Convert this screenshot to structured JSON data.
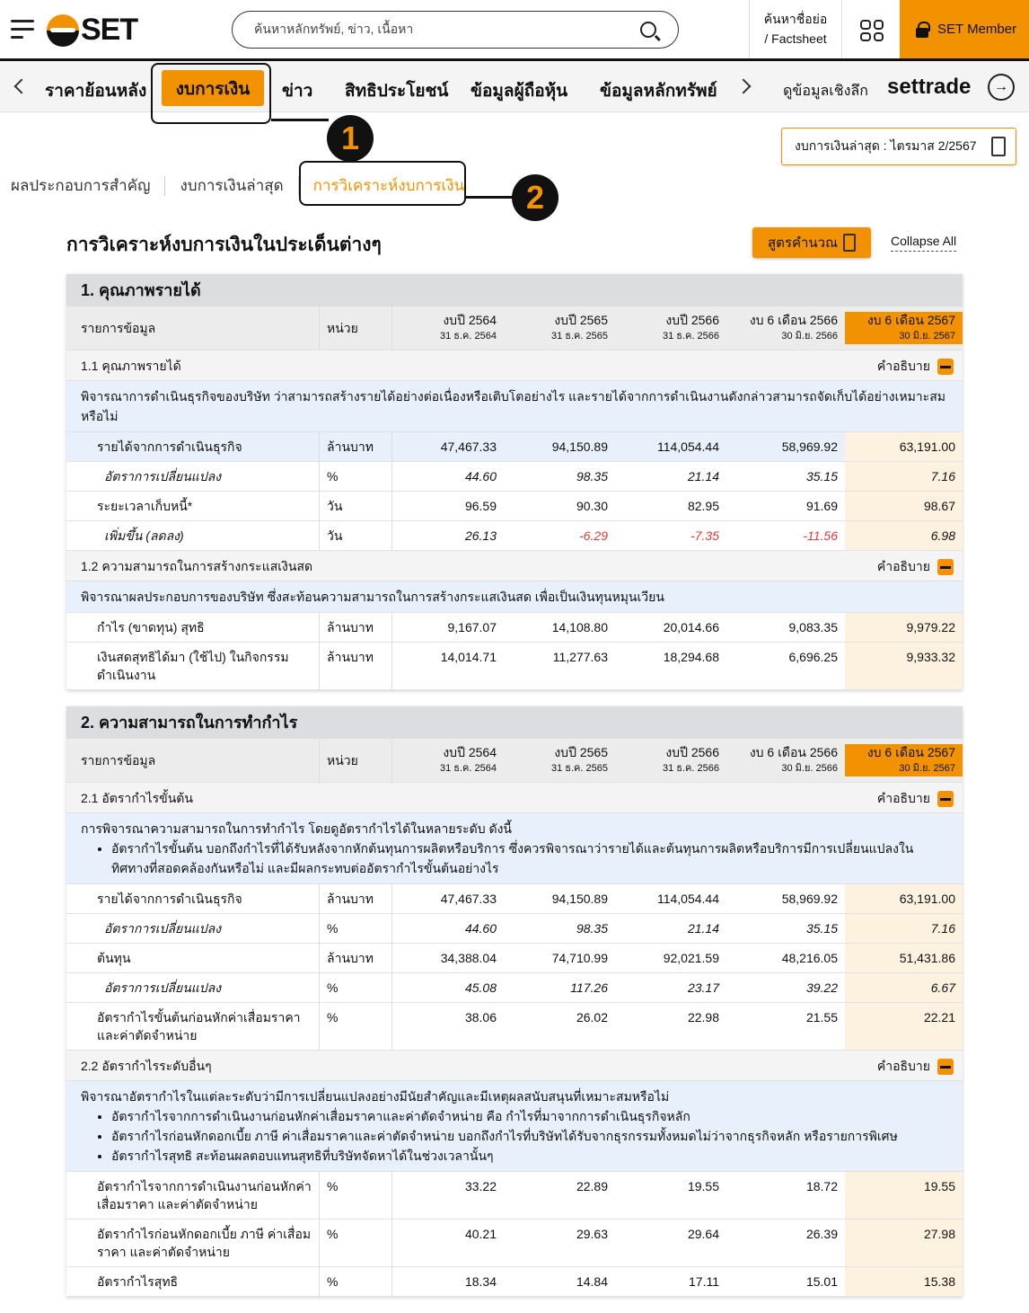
{
  "header": {
    "logo": "SET",
    "search_placeholder": "ค้นหาหลักทรัพย์, ข่าว, เนื้อหา",
    "factsheet_line1": "ค้นหาชื่อย่อ",
    "factsheet_line2": "/ Factsheet",
    "member": "SET Member",
    "accent": "#f39200"
  },
  "nav": {
    "items": [
      "ราคาย้อนหลัง",
      "งบการเงิน",
      "ข่าว",
      "สิทธิประโยชน์",
      "ข้อมูลผู้ถือหุ้น",
      "ข้อมูลหลักทรัพย์"
    ],
    "active": "งบการเงิน",
    "deep": "ดูข้อมูลเชิงลึก",
    "settrade": "settrade"
  },
  "annotations": [
    "1",
    "2"
  ],
  "latest": "งบการเงินล่าสุด : ไตรมาส 2/2567",
  "subtabs": [
    "ผลประกอบการสำคัญ",
    "งบการเงินล่าสุด",
    "การวิเคราะห์งบการเงิน"
  ],
  "page_title": "การวิเคราะห์งบการเงินในประเด็นต่างๆ",
  "formula_button": "สูตรคำนวณ",
  "collapse_all": "Collapse All",
  "columns": {
    "item": "รายการข้อมูล",
    "unit": "หน่วย",
    "periods": [
      {
        "t": "งบปี 2564",
        "d": "31 ธ.ค. 2564"
      },
      {
        "t": "งบปี 2565",
        "d": "31 ธ.ค. 2565"
      },
      {
        "t": "งบปี 2566",
        "d": "31 ธ.ค. 2566"
      },
      {
        "t": "งบ 6 เดือน 2566",
        "d": "30 มิ.ย. 2566"
      },
      {
        "t": "งบ 6 เดือน 2567",
        "d": "30 มิ.ย. 2567"
      }
    ]
  },
  "explain_label": "คำอธิบาย",
  "sections": [
    {
      "title": "1. คุณภาพรายได้",
      "subs": [
        {
          "title": "1.1 คุณภาพรายได้",
          "desc": "พิจารณาการดำเนินธุรกิจของบริษัท ว่าสามารถสร้างรายได้อย่างต่อเนื่องหรือเติบโตอย่างไร และรายได้จากการดำเนินงานดังกล่าวสามารถจัดเก็บได้อย่างเหมาะสมหรือไม่",
          "bullets": [],
          "rows": [
            {
              "label": "รายได้จากการดำเนินธุรกิจ",
              "unit": "ล้านบาท",
              "values": [
                "47,467.33",
                "94,150.89",
                "114,054.44",
                "58,969.92",
                "63,191.00"
              ],
              "highlight": true
            },
            {
              "label": "อัตราการเปลี่ยนแปลง",
              "unit": "%",
              "values": [
                "44.60",
                "98.35",
                "21.14",
                "35.15",
                "7.16"
              ],
              "italic": true
            },
            {
              "label": "ระยะเวลาเก็บหนี้*",
              "unit": "วัน",
              "values": [
                "96.59",
                "90.30",
                "82.95",
                "91.69",
                "98.67"
              ]
            },
            {
              "label": "เพิ่มขึ้น (ลดลง)",
              "unit": "วัน",
              "values": [
                "26.13",
                "-6.29",
                "-7.35",
                "-11.56",
                "6.98"
              ],
              "italic": true
            }
          ]
        },
        {
          "title": "1.2 ความสามารถในการสร้างกระแสเงินสด",
          "desc": "พิจารณาผลประกอบการของบริษัท ซึ่งสะท้อนความสามารถในการสร้างกระแสเงินสด เพื่อเป็นเงินทุนหมุนเวียน",
          "bullets": [],
          "rows": [
            {
              "label": "กำไร (ขาดทุน) สุทธิ",
              "unit": "ล้านบาท",
              "values": [
                "9,167.07",
                "14,108.80",
                "20,014.66",
                "9,083.35",
                "9,979.22"
              ]
            },
            {
              "label": "เงินสดสุทธิได้มา (ใช้ไป) ในกิจกรรมดำเนินงาน",
              "unit": "ล้านบาท",
              "values": [
                "14,014.71",
                "11,277.63",
                "18,294.68",
                "6,696.25",
                "9,933.32"
              ]
            }
          ]
        }
      ]
    },
    {
      "title": "2. ความสามารถในการทำกำไร",
      "subs": [
        {
          "title": "2.1 อัตรากำไรขั้นต้น",
          "desc": "การพิจารณาความสามารถในการทำกำไร โดยดูอัตรากำไรได้ในหลายระดับ ดังนี้",
          "bullets": [
            "อัตรากำไรขั้นต้น บอกถึงกำไรที่ได้รับหลังจากหักต้นทุนการผลิตหรือบริการ ซึ่งควรพิจารณาว่ารายได้และต้นทุนการผลิตหรือบริการมีการเปลี่ยนแปลงในทิศทางที่สอดคล้องกันหรือไม่ และมีผลกระทบต่ออัตรากำไรขั้นต้นอย่างไร"
          ],
          "rows": [
            {
              "label": "รายได้จากการดำเนินธุรกิจ",
              "unit": "ล้านบาท",
              "values": [
                "47,467.33",
                "94,150.89",
                "114,054.44",
                "58,969.92",
                "63,191.00"
              ]
            },
            {
              "label": "อัตราการเปลี่ยนแปลง",
              "unit": "%",
              "values": [
                "44.60",
                "98.35",
                "21.14",
                "35.15",
                "7.16"
              ],
              "italic": true
            },
            {
              "label": "ต้นทุน",
              "unit": "ล้านบาท",
              "values": [
                "34,388.04",
                "74,710.99",
                "92,021.59",
                "48,216.05",
                "51,431.86"
              ]
            },
            {
              "label": "อัตราการเปลี่ยนแปลง",
              "unit": "%",
              "values": [
                "45.08",
                "117.26",
                "23.17",
                "39.22",
                "6.67"
              ],
              "italic": true
            },
            {
              "label": "อัตรากำไรขั้นต้นก่อนหักค่าเสื่อมราคาและค่าตัดจำหน่าย",
              "unit": "%",
              "values": [
                "38.06",
                "26.02",
                "22.98",
                "21.55",
                "22.21"
              ]
            }
          ]
        },
        {
          "title": "2.2 อัตรากำไรระดับอื่นๆ",
          "desc": "พิจารณาอัตรากำไรในแต่ละระดับว่ามีการเปลี่ยนแปลงอย่างมีนัยสำคัญและมีเหตุผลสนับสนุนที่เหมาะสมหรือไม่",
          "bullets": [
            "อัตรากำไรจากการดำเนินงานก่อนหักค่าเสื่อมราคาและค่าตัดจำหน่าย คือ กำไรที่มาจากการดำเนินธุรกิจหลัก",
            "อัตรากำไรก่อนหักดอกเบี้ย ภาษี ค่าเสื่อมราคาและค่าตัดจำหน่าย บอกถึงกำไรที่บริษัทได้รับจากธุรกรรมทั้งหมดไม่ว่าจากธุรกิจหลัก หรือรายการพิเศษ",
            "อัตรากำไรสุทธิ สะท้อนผลตอบแทนสุทธิที่บริษัทจัดหาได้ในช่วงเวลานั้นๆ"
          ],
          "rows": [
            {
              "label": "อัตรากำไรจากการดำเนินงานก่อนหักค่าเสื่อมราคา และค่าตัดจำหน่าย",
              "unit": "%",
              "values": [
                "33.22",
                "22.89",
                "19.55",
                "18.72",
                "19.55"
              ]
            },
            {
              "label": "อัตรากำไรก่อนหักดอกเบี้ย ภาษี ค่าเสื่อมราคา และค่าตัดจำหน่าย",
              "unit": "%",
              "values": [
                "40.21",
                "29.63",
                "29.64",
                "26.39",
                "27.98"
              ]
            },
            {
              "label": "อัตรากำไรสุทธิ",
              "unit": "%",
              "values": [
                "18.34",
                "14.84",
                "17.11",
                "15.01",
                "15.38"
              ]
            }
          ]
        }
      ]
    }
  ]
}
